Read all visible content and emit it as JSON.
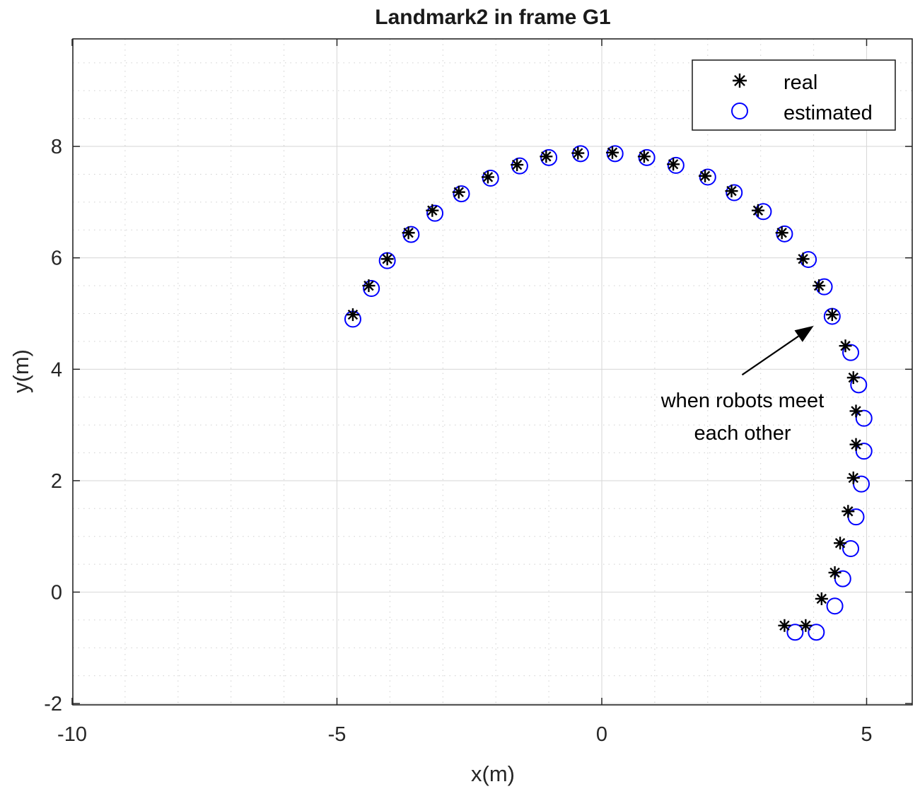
{
  "chart_data": {
    "type": "scatter",
    "title": "Landmark2 in frame G1",
    "xlabel": "x(m)",
    "ylabel": "y(m)",
    "xlim": [
      -10,
      6
    ],
    "ylim": [
      -2.1,
      9.6
    ],
    "xticks": [
      -10,
      -5,
      0,
      5
    ],
    "xtick_labels": [
      "-10",
      "-5",
      "0",
      "5"
    ],
    "yticks": [
      -2,
      0,
      2,
      4,
      6,
      8
    ],
    "ytick_labels": [
      "-2",
      "0",
      "2",
      "4",
      "6",
      "8"
    ],
    "grid": "on (major and minor)",
    "legend": {
      "position": "top-right",
      "entries": [
        "real",
        "estimated"
      ]
    },
    "colors": {
      "real": "#000000",
      "estimated": "#0000ff"
    },
    "series": [
      {
        "name": "real",
        "marker": "asterisk",
        "x": [
          -4.7,
          -4.4,
          -4.05,
          -3.65,
          -3.2,
          -2.7,
          -2.15,
          -1.6,
          -1.05,
          -0.45,
          0.2,
          0.8,
          1.35,
          1.95,
          2.45,
          2.95,
          3.4,
          3.8,
          4.1,
          4.35,
          4.6,
          4.75,
          4.8,
          4.8,
          4.75,
          4.65,
          4.5,
          4.4,
          4.15,
          3.85,
          3.45
        ],
        "y": [
          4.98,
          5.5,
          5.98,
          6.45,
          6.85,
          7.18,
          7.45,
          7.67,
          7.82,
          7.88,
          7.89,
          7.82,
          7.68,
          7.47,
          7.2,
          6.85,
          6.45,
          5.98,
          5.5,
          4.98,
          4.42,
          3.85,
          3.25,
          2.65,
          2.05,
          1.45,
          0.88,
          0.35,
          -0.12,
          -0.6,
          -0.6
        ]
      },
      {
        "name": "estimated",
        "marker": "circle",
        "x": [
          -4.7,
          -4.35,
          -4.05,
          -3.6,
          -3.15,
          -2.65,
          -2.1,
          -1.55,
          -1.0,
          -0.4,
          0.25,
          0.85,
          1.4,
          2.0,
          2.5,
          3.05,
          3.45,
          3.9,
          4.2,
          4.35,
          4.7,
          4.85,
          4.95,
          4.95,
          4.9,
          4.8,
          4.7,
          4.55,
          4.4,
          4.05,
          3.65
        ],
        "y": [
          4.9,
          5.45,
          5.95,
          6.42,
          6.8,
          7.15,
          7.43,
          7.65,
          7.8,
          7.87,
          7.87,
          7.8,
          7.66,
          7.45,
          7.17,
          6.83,
          6.43,
          5.97,
          5.48,
          4.95,
          4.3,
          3.72,
          3.12,
          2.53,
          1.94,
          1.35,
          0.78,
          0.24,
          -0.25,
          -0.72,
          -0.72
        ]
      }
    ],
    "annotation": {
      "lines": [
        "when robots meet",
        "each other"
      ],
      "arrow_from": [
        2.65,
        3.9
      ],
      "arrow_to": [
        4.0,
        4.78
      ]
    }
  }
}
